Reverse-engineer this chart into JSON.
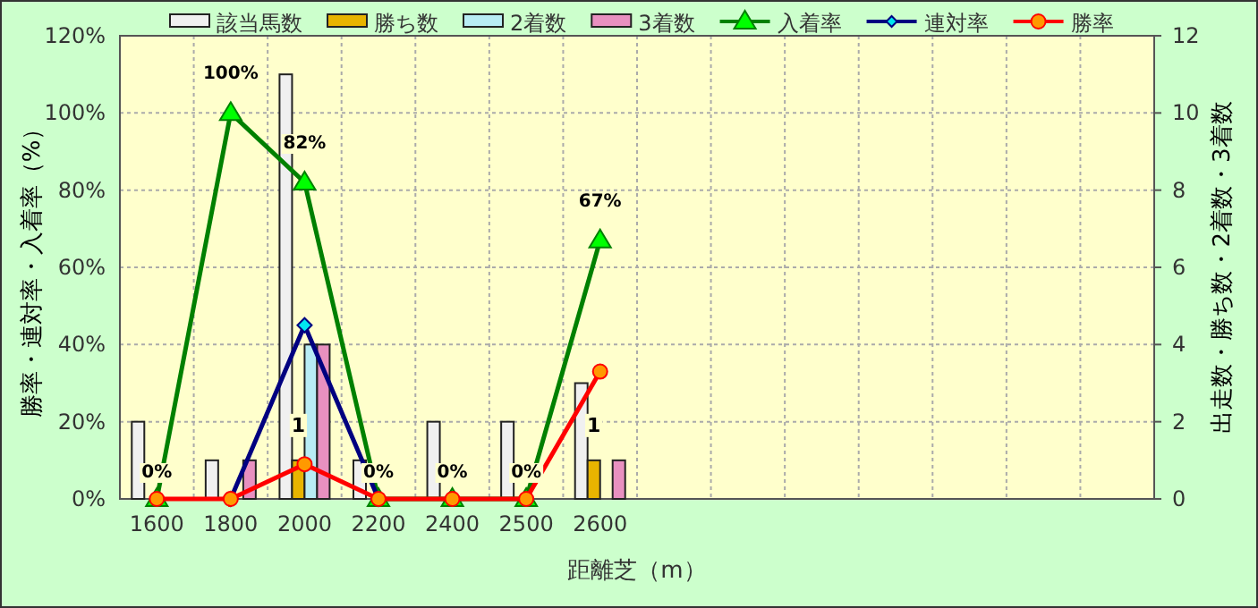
{
  "chart_data": {
    "type": "bar",
    "xlabel": "距離芝（m）",
    "ylabel": "勝率・連対率・入着率（%）",
    "y2label": "出走数・勝ち数・2着数・3着数",
    "categories": [
      "1600",
      "1800",
      "2000",
      "2200",
      "2400",
      "2500",
      "2600",
      null,
      null,
      null,
      null,
      null,
      null,
      null
    ],
    "series": [
      {
        "name": "該当馬数",
        "type": "bar",
        "axis": "y2",
        "color": "#f0f0f0",
        "values": [
          2,
          1,
          11,
          1,
          2,
          2,
          3,
          null,
          null,
          null,
          null,
          null,
          null,
          null
        ]
      },
      {
        "name": "勝ち数",
        "type": "bar",
        "axis": "y2",
        "color": "#e8b400",
        "values": [
          0,
          0,
          1,
          0,
          0,
          0,
          1,
          null,
          null,
          null,
          null,
          null,
          null,
          null
        ],
        "value_labels": [
          null,
          null,
          "1",
          null,
          null,
          null,
          "1",
          null,
          null,
          null,
          null,
          null,
          null,
          null
        ]
      },
      {
        "name": "2着数",
        "type": "bar",
        "axis": "y2",
        "color": "#b8ecf4",
        "values": [
          0,
          0,
          4,
          0,
          0,
          0,
          0,
          null,
          null,
          null,
          null,
          null,
          null,
          null
        ]
      },
      {
        "name": "3着数",
        "type": "bar",
        "axis": "y2",
        "color": "#e890c0",
        "values": [
          0,
          1,
          4,
          0,
          0,
          0,
          1,
          null,
          null,
          null,
          null,
          null,
          null,
          null
        ]
      },
      {
        "name": "入着率",
        "type": "line",
        "color": "#008000",
        "marker": "triangle",
        "values": [
          0,
          100,
          82,
          0,
          0,
          0,
          67,
          null,
          null,
          null,
          null,
          null,
          null,
          null
        ],
        "value_labels": [
          "0%",
          "100%",
          "82%",
          "0%",
          "0%",
          "0%",
          "67%",
          null,
          null,
          null,
          null,
          null,
          null,
          null
        ]
      },
      {
        "name": "連対率",
        "type": "line",
        "color": "#000080",
        "marker": "diamond",
        "values": [
          null,
          0,
          45,
          0,
          null,
          null,
          null,
          null,
          null,
          null,
          null,
          null,
          null,
          null
        ]
      },
      {
        "name": "勝率",
        "type": "line",
        "color": "#ff0000",
        "marker": "circle",
        "values": [
          0,
          0,
          9,
          0,
          0,
          0,
          33,
          null,
          null,
          null,
          null,
          null,
          null,
          null
        ]
      }
    ],
    "ylim": [
      0,
      120
    ],
    "yticks": [
      {
        "value": 0,
        "label": "0%"
      },
      {
        "value": 20,
        "label": "20%"
      },
      {
        "value": 40,
        "label": "40%"
      },
      {
        "value": 60,
        "label": "60%"
      },
      {
        "value": 80,
        "label": "80%"
      },
      {
        "value": 100,
        "label": "100%"
      },
      {
        "value": 120,
        "label": "120%"
      }
    ],
    "y2lim": [
      0,
      12
    ],
    "y2ticks": [
      0,
      2,
      4,
      6,
      8,
      10,
      12
    ],
    "grid": true,
    "legend": "top"
  }
}
